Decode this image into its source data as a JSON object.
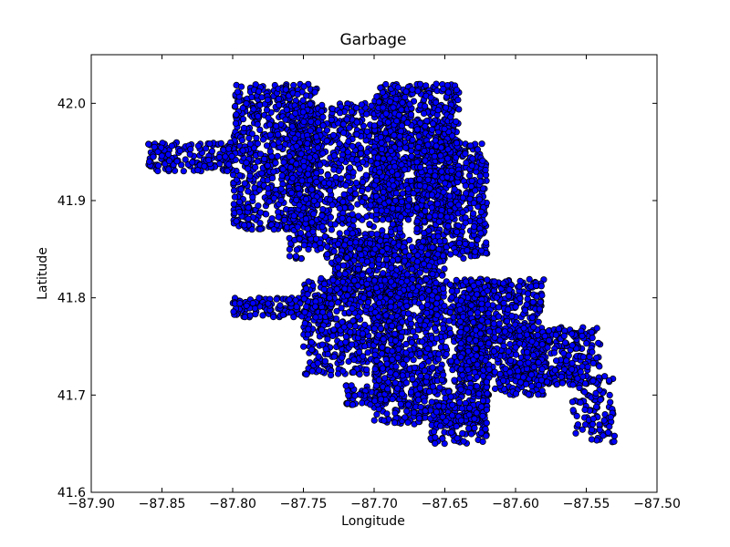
{
  "chart_data": {
    "type": "scatter",
    "title": "Garbage",
    "xlabel": "Longitude",
    "ylabel": "Latitude",
    "xlim": [
      -87.9,
      -87.5
    ],
    "ylim": [
      41.6,
      42.05
    ],
    "xticks": [
      "−87.90",
      "−87.85",
      "−87.80",
      "−87.75",
      "−87.70",
      "−87.65",
      "−87.60",
      "−87.55",
      "−87.50"
    ],
    "xtick_values": [
      -87.9,
      -87.85,
      -87.8,
      -87.75,
      -87.7,
      -87.65,
      -87.6,
      -87.55,
      -87.5
    ],
    "yticks": [
      "41.6",
      "41.7",
      "41.8",
      "41.9",
      "42.0"
    ],
    "ytick_values": [
      41.6,
      41.7,
      41.8,
      41.9,
      42.0
    ],
    "grid": false,
    "marker_color": "#0000ff",
    "marker_edge_color": "#000000",
    "regions": [
      {
        "x": [
          -87.8,
          -87.74
        ],
        "y": [
          41.87,
          42.02
        ],
        "n": 700
      },
      {
        "x": [
          -87.76,
          -87.68
        ],
        "y": [
          41.84,
          42.0
        ],
        "n": 900
      },
      {
        "x": [
          -87.7,
          -87.64
        ],
        "y": [
          41.88,
          42.02
        ],
        "n": 800
      },
      {
        "x": [
          -87.67,
          -87.62
        ],
        "y": [
          41.84,
          41.96
        ],
        "n": 500
      },
      {
        "x": [
          -87.86,
          -87.8
        ],
        "y": [
          41.93,
          41.96
        ],
        "n": 150
      },
      {
        "x": [
          -87.73,
          -87.65
        ],
        "y": [
          41.8,
          41.86
        ],
        "n": 450
      },
      {
        "x": [
          -87.75,
          -87.68
        ],
        "y": [
          41.72,
          41.82
        ],
        "n": 500
      },
      {
        "x": [
          -87.8,
          -87.73
        ],
        "y": [
          41.78,
          41.8
        ],
        "n": 150
      },
      {
        "x": [
          -87.7,
          -87.62
        ],
        "y": [
          41.67,
          41.82
        ],
        "n": 900
      },
      {
        "x": [
          -87.64,
          -87.58
        ],
        "y": [
          41.7,
          41.82
        ],
        "n": 600
      },
      {
        "x": [
          -87.6,
          -87.54
        ],
        "y": [
          41.71,
          41.77
        ],
        "n": 300
      },
      {
        "x": [
          -87.56,
          -87.53
        ],
        "y": [
          41.65,
          41.72
        ],
        "n": 90
      },
      {
        "x": [
          -87.72,
          -87.69
        ],
        "y": [
          41.69,
          41.71
        ],
        "n": 60
      },
      {
        "x": [
          -87.66,
          -87.62
        ],
        "y": [
          41.65,
          41.69
        ],
        "n": 120
      }
    ]
  }
}
